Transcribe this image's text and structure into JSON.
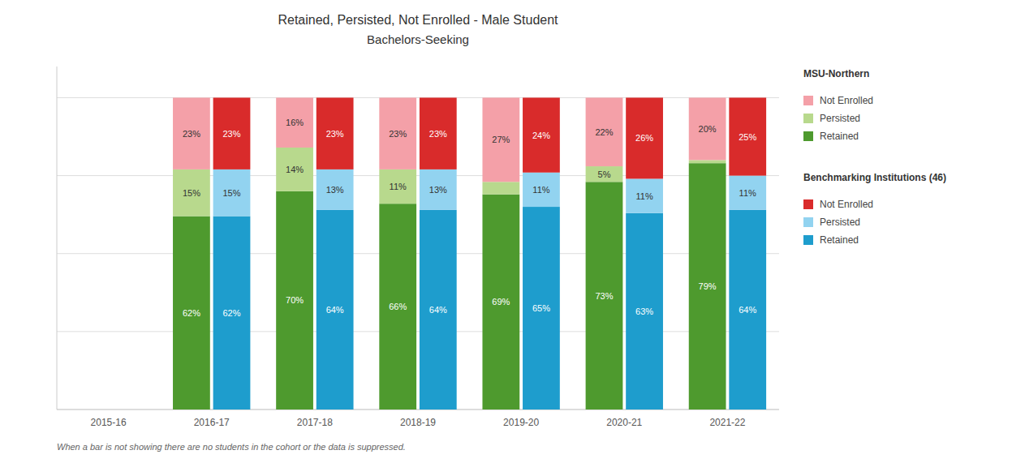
{
  "chart_data": {
    "type": "bar",
    "title": "Retained, Persisted, Not Enrolled - Male Student",
    "subtitle": "Bachelors-Seeking",
    "annotations": [
      "When a bar is not showing there are no students in the cohort or the data is suppressed."
    ],
    "categories": [
      "2015-16",
      "2016-17",
      "2017-18",
      "2018-19",
      "2019-20",
      "2020-21",
      "2021-22"
    ],
    "groups": [
      {
        "name": "MSU-Northern",
        "series": [
          {
            "name": "Retained",
            "color": "#4e9a2e",
            "values": [
              0,
              62,
              70,
              66,
              69,
              73,
              79
            ],
            "value_labels": [
              null,
              "62%",
              "70%",
              "66%",
              "69%",
              "73%",
              "79%"
            ]
          },
          {
            "name": "Persisted",
            "color": "#b8d98d",
            "values": [
              0,
              15,
              14,
              11,
              4,
              5,
              1
            ],
            "value_labels": [
              null,
              "15%",
              "14%",
              "11%",
              null,
              "5%",
              null
            ]
          },
          {
            "name": "Not Enrolled",
            "color": "#f4a0a8",
            "values": [
              0,
              23,
              16,
              23,
              27,
              22,
              20
            ],
            "value_labels": [
              null,
              "23%",
              "16%",
              "23%",
              "27%",
              "22%",
              "20%"
            ]
          }
        ]
      },
      {
        "name": "Benchmarking Institutions (46)",
        "series": [
          {
            "name": "Retained",
            "color": "#1e9dcd",
            "values": [
              0,
              62,
              64,
              64,
              65,
              63,
              64
            ],
            "value_labels": [
              null,
              "62%",
              "64%",
              "64%",
              "65%",
              "63%",
              "64%"
            ]
          },
          {
            "name": "Persisted",
            "color": "#92d3f0",
            "values": [
              0,
              15,
              13,
              13,
              11,
              11,
              11
            ],
            "value_labels": [
              null,
              "15%",
              "13%",
              "13%",
              "11%",
              "11%",
              "11%"
            ]
          },
          {
            "name": "Not Enrolled",
            "color": "#d92b2b",
            "values": [
              0,
              23,
              23,
              23,
              24,
              26,
              25
            ],
            "value_labels": [
              null,
              "23%",
              "23%",
              "23%",
              "24%",
              "26%",
              "25%"
            ]
          }
        ]
      }
    ],
    "ylim": [
      0,
      110
    ],
    "yticks": [
      25,
      50,
      75,
      100
    ],
    "tick_labels": "x",
    "grid": true,
    "stacked": true,
    "data_labels": true,
    "legend": "right"
  }
}
